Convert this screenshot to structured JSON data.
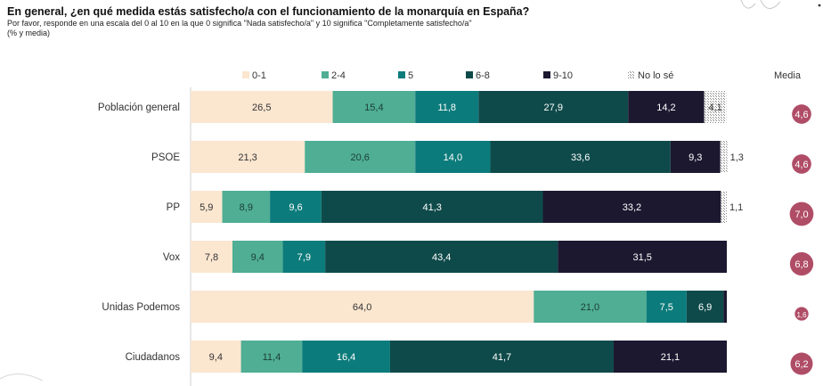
{
  "header": {
    "title": "En general, ¿en qué medida estás satisfecho/a con el funcionamiento de la monarquía en España?",
    "subtitle": "Por favor, responde en una escala del 0 al 10 en la que 0 significa \"Nada satisfecho/a\" y 10 significa \"Completamente satisfecho/a\"",
    "note": "(% y media)"
  },
  "chart_data": {
    "type": "bar",
    "orientation": "horizontal",
    "stacked": true,
    "title": "En general, ¿en qué medida estás satisfecho/a con el funcionamiento de la monarquía en España?",
    "xlim": [
      0,
      100
    ],
    "legend_position": "top",
    "mean_label": "Media",
    "categories": [
      "Población general",
      "PSOE",
      "PP",
      "Vox",
      "Unidas Podemos",
      "Ciudadanos"
    ],
    "series": [
      {
        "name": "0-1",
        "color": "#fbe6d0",
        "label_color": "#333333",
        "values": [
          26.5,
          21.3,
          5.9,
          7.8,
          64.0,
          9.4
        ],
        "labels": [
          "26,5",
          "21,3",
          "5,9",
          "7,8",
          "64,0",
          "9,4"
        ]
      },
      {
        "name": "2-4",
        "color": "#4fae94",
        "label_color": "#1d3d35",
        "values": [
          15.4,
          20.6,
          8.9,
          9.4,
          21.0,
          11.4
        ],
        "labels": [
          "15,4",
          "20,6",
          "8,9",
          "9,4",
          "21,0",
          "11,4"
        ]
      },
      {
        "name": "5",
        "color": "#0c7b7b",
        "label_color": "#ffffff",
        "values": [
          11.8,
          14.0,
          9.6,
          7.9,
          7.5,
          16.4
        ],
        "labels": [
          "11,8",
          "14,0",
          "9,6",
          "7,9",
          "7,5",
          "16,4"
        ]
      },
      {
        "name": "6-8",
        "color": "#0f4a4a",
        "label_color": "#ffffff",
        "values": [
          27.9,
          33.6,
          41.3,
          43.4,
          6.9,
          41.7
        ],
        "labels": [
          "27,9",
          "33,6",
          "41,3",
          "43,4",
          "6,9",
          "41,7"
        ]
      },
      {
        "name": "9-10",
        "color": "#1c1830",
        "label_color": "#ffffff",
        "values": [
          14.2,
          9.3,
          33.2,
          31.5,
          0.6,
          21.1
        ],
        "labels": [
          "14,2",
          "9,3",
          "33,2",
          "31,5",
          "",
          "21,1"
        ]
      },
      {
        "name": "No lo sé",
        "color": "#d4d4d4",
        "label_color": "#333333",
        "values": [
          4.1,
          1.3,
          1.1,
          0,
          0,
          0
        ],
        "labels": [
          "4,1",
          "1,3",
          "1,1",
          "",
          "",
          ""
        ]
      }
    ],
    "means": [
      {
        "label": "4,6",
        "value": 4.6
      },
      {
        "label": "4,6",
        "value": 4.6
      },
      {
        "label": "7,0",
        "value": 7.0
      },
      {
        "label": "6,8",
        "value": 6.8
      },
      {
        "label": "1,6",
        "value": 1.6
      },
      {
        "label": "6,2",
        "value": 6.2
      }
    ],
    "mean_color": "#b04d66"
  }
}
